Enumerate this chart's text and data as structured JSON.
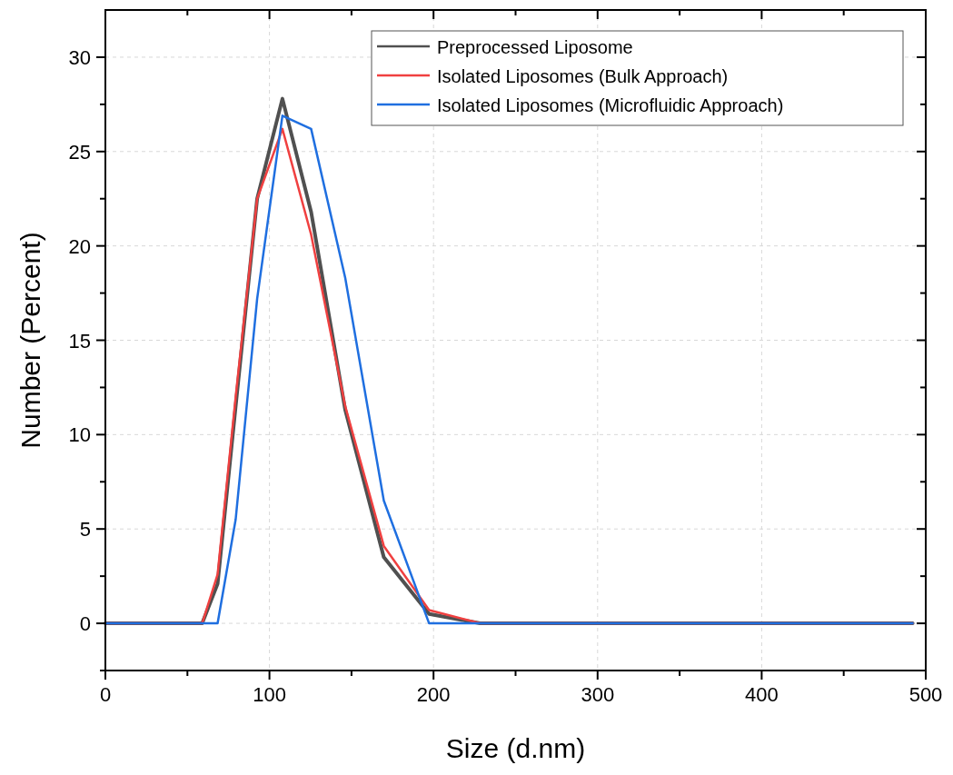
{
  "chart_data": {
    "type": "line",
    "xlabel": "Size (d.nm)",
    "ylabel": "Number (Percent)",
    "xlim": [
      0,
      500
    ],
    "ylim": [
      -2.5,
      32.5
    ],
    "xticks": [
      0,
      100,
      200,
      300,
      400,
      500
    ],
    "yticks": [
      0,
      5,
      10,
      15,
      20,
      25,
      30
    ],
    "grid": true,
    "legend": "top right",
    "line_style": "solid",
    "series": [
      {
        "name": "Preprocessed Liposome",
        "color": "#505050",
        "x": [
          0,
          59,
          68.4,
          79.4,
          92.5,
          107.9,
          125.4,
          146.2,
          169.7,
          197.3,
          228.4,
          492
        ],
        "values": [
          0,
          0,
          2.1,
          11.5,
          22.5,
          27.8,
          21.8,
          11.3,
          3.5,
          0.5,
          0,
          0
        ]
      },
      {
        "name": "Isolated Liposomes (Bulk Approach)",
        "color": "#f04040",
        "x": [
          0,
          59,
          68.4,
          79.4,
          92.5,
          107.9,
          125.4,
          146.2,
          169.7,
          197.3,
          228.4,
          492
        ],
        "values": [
          0,
          0,
          2.6,
          12,
          22.5,
          26.2,
          20.6,
          11.5,
          4.1,
          0.7,
          0,
          0
        ]
      },
      {
        "name": "Isolated Liposomes (Microfluidic Approach)",
        "color": "#1f6fe0",
        "x": [
          0,
          59,
          68.4,
          79.4,
          92.5,
          107.9,
          125.4,
          146.2,
          169.7,
          197.3,
          228.4,
          492
        ],
        "values": [
          0,
          0,
          0,
          5.5,
          17.2,
          26.9,
          26.2,
          18.3,
          6.5,
          0,
          0,
          0
        ]
      }
    ]
  }
}
